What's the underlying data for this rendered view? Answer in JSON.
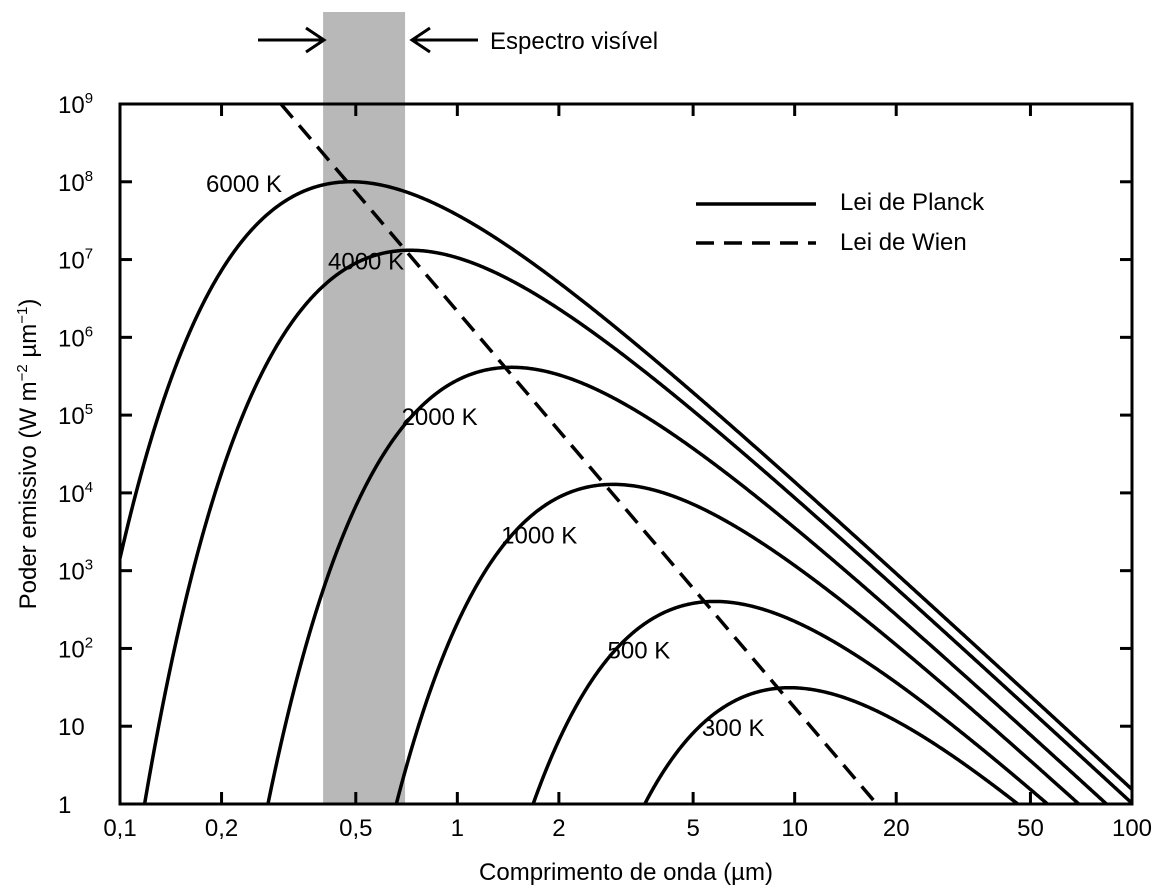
{
  "chart_data": {
    "type": "line",
    "xscale": "log",
    "yscale": "log",
    "xlim": [
      0.1,
      100
    ],
    "ylim": [
      1,
      1000000000
    ],
    "xlabel": "Comprimento de onda  (µm)",
    "ylabel": "Poder emissivo  (W m",
    "ylabel_unit_mid": " µm",
    "ylabel_sup1": "−2",
    "ylabel_sup2": "−1",
    "ylabel_close": ")",
    "xticks": [
      {
        "value": 0.1,
        "label": "0,1"
      },
      {
        "value": 0.2,
        "label": "0,2"
      },
      {
        "value": 0.5,
        "label": "0,5"
      },
      {
        "value": 1,
        "label": "1"
      },
      {
        "value": 2,
        "label": "2"
      },
      {
        "value": 5,
        "label": "5"
      },
      {
        "value": 10,
        "label": "10"
      },
      {
        "value": 20,
        "label": "20"
      },
      {
        "value": 50,
        "label": "50"
      },
      {
        "value": 100,
        "label": "100"
      }
    ],
    "yticks": [
      {
        "value": 1,
        "base": "1",
        "exp": ""
      },
      {
        "value": 10,
        "base": "10",
        "exp": ""
      },
      {
        "value": 100,
        "base": "10",
        "exp": "2"
      },
      {
        "value": 1000,
        "base": "10",
        "exp": "3"
      },
      {
        "value": 10000,
        "base": "10",
        "exp": "4"
      },
      {
        "value": 100000,
        "base": "10",
        "exp": "5"
      },
      {
        "value": 1000000,
        "base": "10",
        "exp": "6"
      },
      {
        "value": 10000000,
        "base": "10",
        "exp": "7"
      },
      {
        "value": 100000000,
        "base": "10",
        "exp": "8"
      },
      {
        "value": 1000000000,
        "base": "10",
        "exp": "9"
      }
    ],
    "visible_band": {
      "xmin": 0.4,
      "xmax": 0.7,
      "label": "Espectro visível",
      "color": "#b8b8b8"
    },
    "legend": {
      "position": "top-right",
      "entries": [
        {
          "label": "Lei de Planck",
          "style": "solid"
        },
        {
          "label": "Lei de Wien",
          "style": "dashed"
        }
      ]
    },
    "series": [
      {
        "name": "6000 K",
        "temperature": 6000,
        "label_x": 0.1,
        "label_y": 100000000
      },
      {
        "name": "4000 K",
        "temperature": 4000,
        "label_x": 0.23,
        "label_y": 10000000
      },
      {
        "name": "2000 K",
        "temperature": 2000,
        "label_x": 0.38,
        "label_y": 100000
      },
      {
        "name": "1000 K",
        "temperature": 1000,
        "label_x": 0.75,
        "label_y": 3000
      },
      {
        "name": "500 K",
        "temperature": 500,
        "label_x": 1.55,
        "label_y": 100
      },
      {
        "name": "300 K",
        "temperature": 300,
        "label_x": 2.95,
        "label_y": 10
      }
    ],
    "wien": {
      "x": [
        0.3,
        17.5
      ],
      "y": [
        1000000000,
        1
      ]
    },
    "colors": {
      "line": "#000000",
      "band": "#b8b8b8",
      "background": "#ffffff"
    }
  }
}
